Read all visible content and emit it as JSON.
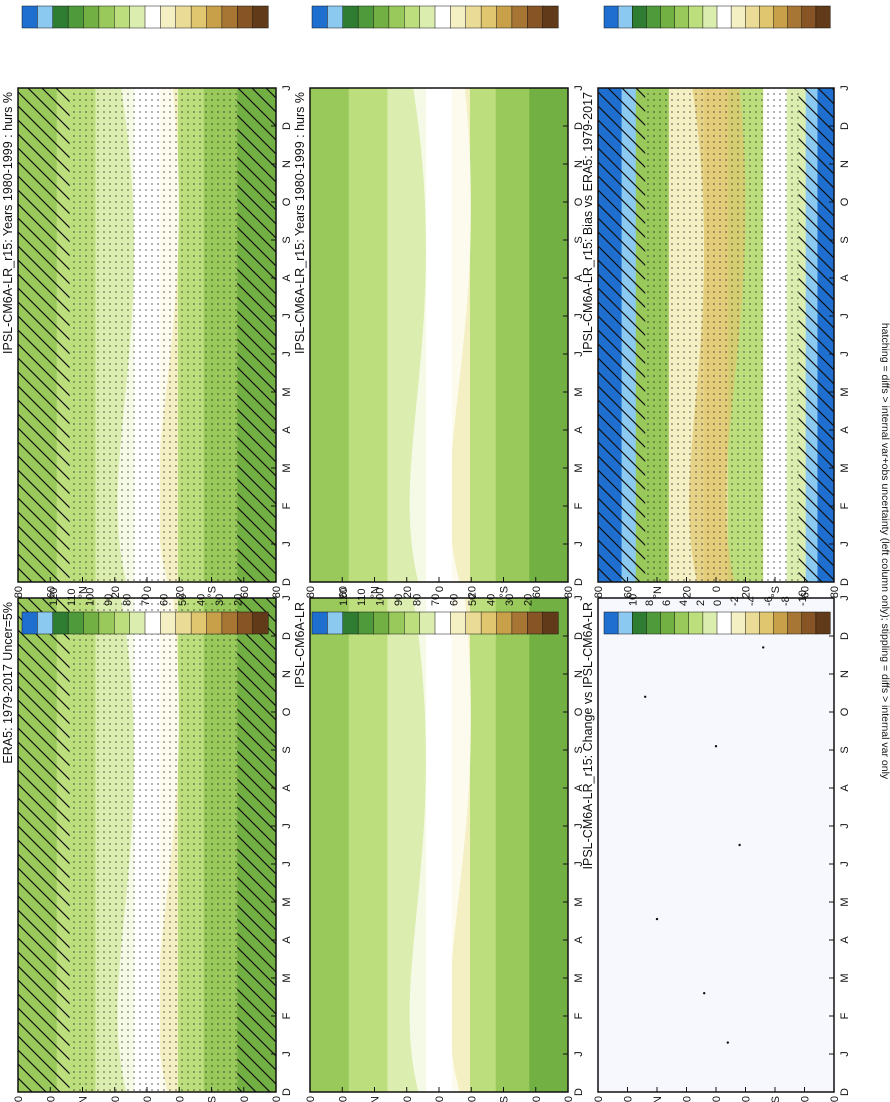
{
  "figure": {
    "footnote": "hatching = diffs > internal var+obs uncertainty (left column only); stippling = diffs > internal var only"
  },
  "colors": {
    "hurs_scale": [
      "#1f6fd1",
      "#8cc9f0",
      "#2e7d32",
      "#4f9a3a",
      "#73b043",
      "#98c95a",
      "#bcde7c",
      "#dcedb0",
      "#ffffff",
      "#f4f0c4",
      "#eadb96",
      "#e0c66e",
      "#c9a04a",
      "#a77634",
      "#865425",
      "#603a19"
    ],
    "diff_scale": [
      "#1f6fd1",
      "#8cc9f0",
      "#2e7d32",
      "#4f9a3a",
      "#73b043",
      "#98c95a",
      "#bcde7c",
      "#dcedb0",
      "#ffffff",
      "#f4f0c4",
      "#eadb96",
      "#e0c66e",
      "#c9a04a",
      "#a77634",
      "#865425",
      "#603a19"
    ],
    "change_field": "#f7f8fd"
  },
  "chart_data": [
    {
      "type": "heatmap",
      "panel": "model-climatology-left",
      "title": "IPSL-CM6A-LR_r15: Years 1980-1999 : hurs %",
      "x_ticks": [
        "D",
        "J",
        "F",
        "M",
        "A",
        "M",
        "J",
        "J",
        "A",
        "S",
        "O",
        "N",
        "D",
        "J"
      ],
      "y_ticks": [
        "80",
        "60",
        "°N",
        "20",
        "0",
        "20",
        "°S",
        "60",
        "80"
      ],
      "colorbar_labels": [
        "120",
        "110",
        "100",
        "90",
        "80",
        "70",
        "60",
        "50",
        "40",
        "30",
        "20"
      ],
      "hatching": true,
      "stippling": true
    },
    {
      "type": "heatmap",
      "panel": "model-climatology-right",
      "title": "IPSL-CM6A-LR_r15: Years 1980-1999 : hurs %",
      "x_ticks": [
        "D",
        "J",
        "F",
        "M",
        "A",
        "M",
        "J",
        "J",
        "A",
        "S",
        "O",
        "N",
        "D",
        "J"
      ],
      "y_ticks": [
        "80",
        "60",
        "°N",
        "20",
        "0",
        "20",
        "°S",
        "60",
        "80"
      ],
      "colorbar_labels": [
        "120",
        "110",
        "100",
        "90",
        "80",
        "70",
        "60",
        "50",
        "40",
        "30",
        "20"
      ],
      "hatching": false,
      "stippling": false
    },
    {
      "type": "heatmap",
      "panel": "obs-climatology",
      "title": "ERA5: 1979-2017 Uncer=5%",
      "x_ticks": [
        "D",
        "J",
        "F",
        "M",
        "A",
        "M",
        "J",
        "J",
        "A",
        "S",
        "O",
        "N",
        "D",
        "J"
      ],
      "y_ticks": [
        "80",
        "60",
        "°N",
        "20",
        "0",
        "20",
        "°S",
        "60",
        "80"
      ],
      "colorbar_labels": [
        "120",
        "110",
        "100",
        "90",
        "80",
        "70",
        "60",
        "50",
        "40",
        "30",
        "20"
      ],
      "hatching": true,
      "stippling": true
    },
    {
      "type": "heatmap",
      "panel": "model-ensemble",
      "title": "IPSL-CM6A-LR",
      "x_ticks": [
        "D",
        "J",
        "F",
        "M",
        "A",
        "M",
        "J",
        "J",
        "A",
        "S",
        "O",
        "N",
        "D",
        "J"
      ],
      "y_ticks": [
        "80",
        "60",
        "°N",
        "20",
        "0",
        "20",
        "°S",
        "60",
        "80"
      ],
      "colorbar_labels": [
        "120",
        "110",
        "100",
        "90",
        "80",
        "70",
        "60",
        "50",
        "40",
        "30",
        "20"
      ],
      "hatching": false,
      "stippling": false
    },
    {
      "type": "heatmap",
      "panel": "bias",
      "title": "IPSL-CM6A-LR_r15: Bias vs ERA5: 1979-2017",
      "x_ticks": [
        "D",
        "J",
        "F",
        "M",
        "A",
        "M",
        "J",
        "J",
        "A",
        "S",
        "O",
        "N",
        "D",
        "J"
      ],
      "y_ticks": [
        "80",
        "60",
        "°N",
        "20",
        "0",
        "20",
        "°S",
        "60",
        "80"
      ],
      "colorbar_labels": [
        "10",
        "8",
        "6",
        "4",
        "2",
        "0",
        "-2",
        "-4",
        "-6",
        "-8",
        "-10"
      ],
      "hatching": true,
      "stippling": true
    },
    {
      "type": "heatmap",
      "panel": "change",
      "title": "IPSL-CM6A-LR_r15: Change vs IPSL-CM6A-LR",
      "x_ticks": [
        "D",
        "J",
        "F",
        "M",
        "A",
        "M",
        "J",
        "J",
        "A",
        "S",
        "O",
        "N",
        "D",
        "J"
      ],
      "y_ticks": [
        "80",
        "60",
        "°N",
        "20",
        "0",
        "20",
        "°S",
        "60",
        "80"
      ],
      "colorbar_labels": [
        "10",
        "8",
        "6",
        "4",
        "2",
        "0",
        "-2",
        "-4",
        "-6",
        "-8",
        "-10"
      ],
      "hatching": false,
      "stippling": true
    }
  ]
}
